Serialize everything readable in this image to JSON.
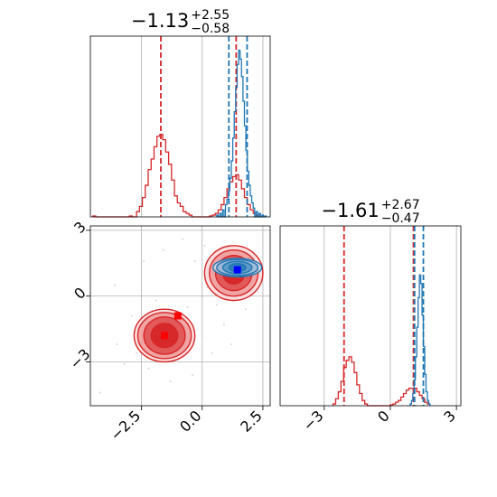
{
  "chart_data": [
    {
      "panel": "marginal-param-1",
      "type": "histogram",
      "title": {
        "median": "−1.13",
        "plus": "+2.55",
        "minus": "−0.58"
      },
      "xlim": [
        -4.6,
        2.8
      ],
      "ylim": [
        0,
        1
      ],
      "grid": true,
      "series": [
        {
          "color": "#d62728",
          "bin_width": 0.12,
          "bins": [
            {
              "x": -4.5,
              "h": 0.005
            },
            {
              "x": -3.0,
              "h": 0.005
            },
            {
              "x": -2.7,
              "h": 0.03
            },
            {
              "x": -2.58,
              "h": 0.06
            },
            {
              "x": -2.46,
              "h": 0.11
            },
            {
              "x": -2.34,
              "h": 0.18
            },
            {
              "x": -2.22,
              "h": 0.27
            },
            {
              "x": -2.1,
              "h": 0.33
            },
            {
              "x": -1.98,
              "h": 0.4
            },
            {
              "x": -1.86,
              "h": 0.46
            },
            {
              "x": -1.74,
              "h": 0.47
            },
            {
              "x": -1.62,
              "h": 0.44
            },
            {
              "x": -1.5,
              "h": 0.37
            },
            {
              "x": -1.38,
              "h": 0.3
            },
            {
              "x": -1.26,
              "h": 0.21
            },
            {
              "x": -1.14,
              "h": 0.12
            },
            {
              "x": -1.02,
              "h": 0.08
            },
            {
              "x": -0.9,
              "h": 0.06
            },
            {
              "x": -0.78,
              "h": 0.03
            },
            {
              "x": -0.66,
              "h": 0.02
            },
            {
              "x": -0.54,
              "h": 0.01
            },
            {
              "x": 0.3,
              "h": 0.005
            },
            {
              "x": 0.42,
              "h": 0.01
            },
            {
              "x": 0.54,
              "h": 0.02
            },
            {
              "x": 0.66,
              "h": 0.04
            },
            {
              "x": 0.78,
              "h": 0.07
            },
            {
              "x": 0.9,
              "h": 0.11
            },
            {
              "x": 1.02,
              "h": 0.16
            },
            {
              "x": 1.14,
              "h": 0.2
            },
            {
              "x": 1.26,
              "h": 0.23
            },
            {
              "x": 1.38,
              "h": 0.24
            },
            {
              "x": 1.5,
              "h": 0.21
            },
            {
              "x": 1.62,
              "h": 0.16
            },
            {
              "x": 1.74,
              "h": 0.11
            },
            {
              "x": 1.86,
              "h": 0.07
            },
            {
              "x": 1.98,
              "h": 0.04
            },
            {
              "x": 2.1,
              "h": 0.02
            },
            {
              "x": 2.22,
              "h": 0.01
            }
          ],
          "quantiles": [
            -1.7,
            1.4
          ]
        },
        {
          "color": "#1f77b4",
          "bin_width": 0.06,
          "bins": [
            {
              "x": 0.6,
              "h": 0.01
            },
            {
              "x": 0.72,
              "h": 0.02
            },
            {
              "x": 0.84,
              "h": 0.04
            },
            {
              "x": 0.96,
              "h": 0.07
            },
            {
              "x": 1.02,
              "h": 0.1
            },
            {
              "x": 1.08,
              "h": 0.15
            },
            {
              "x": 1.14,
              "h": 0.22
            },
            {
              "x": 1.2,
              "h": 0.32
            },
            {
              "x": 1.26,
              "h": 0.45
            },
            {
              "x": 1.32,
              "h": 0.6
            },
            {
              "x": 1.38,
              "h": 0.74
            },
            {
              "x": 1.44,
              "h": 0.87
            },
            {
              "x": 1.5,
              "h": 0.95
            },
            {
              "x": 1.56,
              "h": 0.9
            },
            {
              "x": 1.62,
              "h": 0.8
            },
            {
              "x": 1.68,
              "h": 0.66
            },
            {
              "x": 1.74,
              "h": 0.52
            },
            {
              "x": 1.8,
              "h": 0.38
            },
            {
              "x": 1.86,
              "h": 0.26
            },
            {
              "x": 1.92,
              "h": 0.18
            },
            {
              "x": 1.98,
              "h": 0.12
            },
            {
              "x": 2.04,
              "h": 0.08
            },
            {
              "x": 2.1,
              "h": 0.05
            },
            {
              "x": 2.22,
              "h": 0.03
            },
            {
              "x": 2.34,
              "h": 0.02
            },
            {
              "x": 2.46,
              "h": 0.01
            },
            {
              "x": 2.58,
              "h": 0.005
            }
          ],
          "quantiles": [
            1.1,
            1.85
          ]
        }
      ]
    },
    {
      "panel": "marginal-param-2",
      "type": "histogram",
      "title": {
        "median": "−1.61",
        "plus": "+2.67",
        "minus": "−0.47"
      },
      "xlim": [
        -5,
        3.2
      ],
      "ylim": [
        0,
        1
      ],
      "xticks": [
        -3,
        0,
        3
      ],
      "xtick_labels": [
        "−3",
        "0",
        "3"
      ],
      "grid": true,
      "series": [
        {
          "color": "#d62728",
          "bin_width": 0.12,
          "bins": [
            {
              "x": -2.6,
              "h": 0.01
            },
            {
              "x": -2.48,
              "h": 0.04
            },
            {
              "x": -2.36,
              "h": 0.08
            },
            {
              "x": -2.24,
              "h": 0.14
            },
            {
              "x": -2.12,
              "h": 0.22
            },
            {
              "x": -2.0,
              "h": 0.26
            },
            {
              "x": -1.88,
              "h": 0.28
            },
            {
              "x": -1.76,
              "h": 0.25
            },
            {
              "x": -1.64,
              "h": 0.19
            },
            {
              "x": -1.52,
              "h": 0.12
            },
            {
              "x": -1.4,
              "h": 0.07
            },
            {
              "x": -1.28,
              "h": 0.03
            },
            {
              "x": -1.16,
              "h": 0.01
            },
            {
              "x": 0.0,
              "h": 0.005
            },
            {
              "x": 0.12,
              "h": 0.01
            },
            {
              "x": 0.24,
              "h": 0.02
            },
            {
              "x": 0.36,
              "h": 0.03
            },
            {
              "x": 0.48,
              "h": 0.05
            },
            {
              "x": 0.6,
              "h": 0.07
            },
            {
              "x": 0.72,
              "h": 0.09
            },
            {
              "x": 0.84,
              "h": 0.1
            },
            {
              "x": 0.96,
              "h": 0.1
            },
            {
              "x": 1.08,
              "h": 0.1
            },
            {
              "x": 1.2,
              "h": 0.08
            },
            {
              "x": 1.32,
              "h": 0.06
            },
            {
              "x": 1.44,
              "h": 0.04
            },
            {
              "x": 1.56,
              "h": 0.02
            },
            {
              "x": 1.68,
              "h": 0.01
            }
          ],
          "quantiles": [
            -2.1,
            1.05
          ]
        },
        {
          "color": "#1f77b4",
          "bin_width": 0.06,
          "bins": [
            {
              "x": 0.9,
              "h": 0.01
            },
            {
              "x": 0.96,
              "h": 0.03
            },
            {
              "x": 1.02,
              "h": 0.07
            },
            {
              "x": 1.08,
              "h": 0.15
            },
            {
              "x": 1.14,
              "h": 0.28
            },
            {
              "x": 1.2,
              "h": 0.45
            },
            {
              "x": 1.26,
              "h": 0.62
            },
            {
              "x": 1.32,
              "h": 0.75
            },
            {
              "x": 1.38,
              "h": 0.7
            },
            {
              "x": 1.44,
              "h": 0.52
            },
            {
              "x": 1.5,
              "h": 0.34
            },
            {
              "x": 1.56,
              "h": 0.18
            },
            {
              "x": 1.62,
              "h": 0.08
            },
            {
              "x": 1.68,
              "h": 0.03
            },
            {
              "x": 1.74,
              "h": 0.01
            }
          ],
          "quantiles": [
            1.1,
            1.5
          ]
        }
      ]
    },
    {
      "panel": "joint-param-1-param-2",
      "type": "contour",
      "xlim": [
        -4.6,
        2.8
      ],
      "ylim": [
        -5,
        3.2
      ],
      "xticks": [
        -2.5,
        0.0,
        2.5
      ],
      "xtick_labels": [
        "−2.5",
        "0.0",
        "2.5"
      ],
      "yticks": [
        3,
        0,
        -3
      ],
      "ytick_labels": [
        "3",
        "0",
        "−3"
      ],
      "grid": true,
      "series": [
        {
          "color": "#d62728",
          "blobs": [
            {
              "cx": -1.55,
              "cy": -1.8,
              "rx": [
                0.55,
                0.85,
                1.1,
                1.25
              ],
              "ry": [
                0.55,
                0.85,
                1.05,
                1.2
              ]
            },
            {
              "cx": 1.3,
              "cy": 1.05,
              "rx": [
                0.45,
                0.75,
                1.0,
                1.2
              ],
              "ry": [
                0.5,
                0.8,
                1.05,
                1.25
              ]
            }
          ],
          "markers": [
            {
              "x": -1.55,
              "y": -1.8
            },
            {
              "x": -1.0,
              "y": -0.9
            },
            {
              "x": 1.1,
              "y": 1.3
            }
          ]
        },
        {
          "color": "#1f77b4",
          "blobs": [
            {
              "cx": 1.45,
              "cy": 1.3,
              "rx": [
                0.35,
                0.6,
                0.85,
                1.0
              ],
              "ry": [
                0.18,
                0.28,
                0.36,
                0.42
              ]
            }
          ],
          "markers": [
            {
              "x": 1.45,
              "y": 1.2
            }
          ]
        }
      ],
      "scatter": [
        {
          "x": -4.2,
          "y": -4.4
        },
        {
          "x": -3.2,
          "y": -3.1
        },
        {
          "x": -2.9,
          "y": -0.9
        },
        {
          "x": -3.6,
          "y": 0.5
        },
        {
          "x": -2.4,
          "y": 1.6
        },
        {
          "x": -1.6,
          "y": 2.1
        },
        {
          "x": -0.8,
          "y": 2.6
        },
        {
          "x": -0.3,
          "y": 1.6
        },
        {
          "x": 0.2,
          "y": 0.4
        },
        {
          "x": 0.6,
          "y": -0.4
        },
        {
          "x": 0.9,
          "y": -1.3
        },
        {
          "x": 0.4,
          "y": -2.6
        },
        {
          "x": -0.4,
          "y": -3.6
        },
        {
          "x": -1.3,
          "y": -3.9
        },
        {
          "x": -2.2,
          "y": -3.3
        },
        {
          "x": -3.5,
          "y": -2.2
        },
        {
          "x": 1.8,
          "y": -0.6
        },
        {
          "x": 2.3,
          "y": 0.2
        },
        {
          "x": 0.1,
          "y": 2.3
        },
        {
          "x": -0.6,
          "y": -0.5
        },
        {
          "x": -1.9,
          "y": -0.2
        },
        {
          "x": -2.7,
          "y": -2.6
        },
        {
          "x": 0.0,
          "y": -1.9
        },
        {
          "x": 1.2,
          "y": -2.2
        }
      ]
    }
  ]
}
